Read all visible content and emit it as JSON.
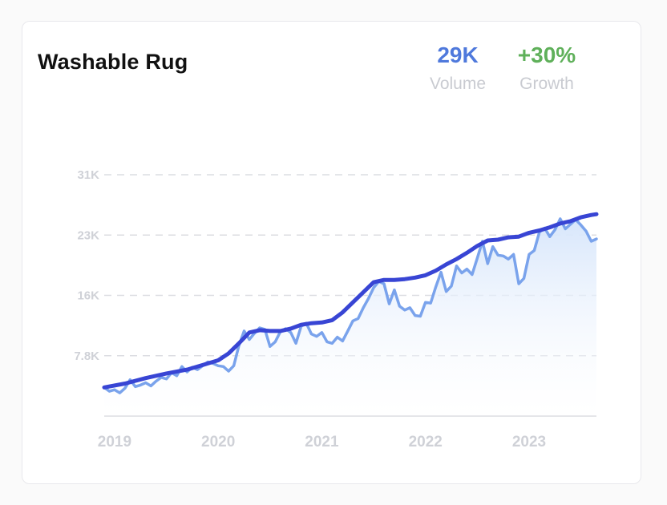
{
  "card": {
    "title": "Washable Rug",
    "stats": [
      {
        "value": "29K",
        "label": "Volume",
        "color": "#4f79dc"
      },
      {
        "value": "+30%",
        "label": "Growth",
        "color": "#5fb05a"
      }
    ]
  },
  "colors": {
    "volume_line": "#7aa3ec",
    "trend_line": "#3845d4",
    "area_fill": "#d7e6fb",
    "grid": "#dcdde2",
    "tick_text": "#cfd1d7"
  },
  "chart_data": {
    "type": "line",
    "title": "Washable Rug",
    "xlabel": "",
    "ylabel": "",
    "x_tick_labels": [
      "2019",
      "2020",
      "2021",
      "2022",
      "2023"
    ],
    "y_tick_labels": [
      "7.8K",
      "16K",
      "23K",
      "31K"
    ],
    "y_tick_values": [
      7800,
      15600,
      23400,
      31200
    ],
    "ylim": [
      0,
      31200
    ],
    "xlim": [
      2018.9,
      2023.65
    ],
    "grid": true,
    "legend": "none",
    "series": [
      {
        "kind": "volume",
        "x": [
          2018.9,
          2018.95,
          2019.0,
          2019.05,
          2019.1,
          2019.15,
          2019.2,
          2019.25,
          2019.3,
          2019.35,
          2019.4,
          2019.45,
          2019.5,
          2019.55,
          2019.6,
          2019.65,
          2019.7,
          2019.75,
          2019.8,
          2019.85,
          2019.9,
          2019.95,
          2020.0,
          2020.05,
          2020.1,
          2020.15,
          2020.2,
          2020.25,
          2020.3,
          2020.35,
          2020.4,
          2020.45,
          2020.5,
          2020.55,
          2020.6,
          2020.65,
          2020.7,
          2020.75,
          2020.8,
          2020.85,
          2020.9,
          2020.95,
          2021.0,
          2021.05,
          2021.1,
          2021.15,
          2021.2,
          2021.25,
          2021.3,
          2021.35,
          2021.4,
          2021.45,
          2021.5,
          2021.55,
          2021.6,
          2021.65,
          2021.7,
          2021.75,
          2021.8,
          2021.85,
          2021.9,
          2021.95,
          2022.0,
          2022.05,
          2022.1,
          2022.15,
          2022.2,
          2022.25,
          2022.3,
          2022.35,
          2022.4,
          2022.45,
          2022.5,
          2022.55,
          2022.6,
          2022.65,
          2022.7,
          2022.75,
          2022.8,
          2022.85,
          2022.9,
          2022.95,
          2023.0,
          2023.05,
          2023.1,
          2023.15,
          2023.2,
          2023.25,
          2023.3,
          2023.35,
          2023.4,
          2023.45,
          2023.5,
          2023.55,
          2023.6,
          2023.65
        ],
        "y": [
          3700,
          3200,
          3400,
          3000,
          3600,
          4700,
          3800,
          4000,
          4300,
          3900,
          4500,
          5000,
          4800,
          5600,
          5200,
          6400,
          5700,
          6300,
          6000,
          6500,
          7000,
          6800,
          6500,
          6400,
          5800,
          6500,
          9100,
          11000,
          9900,
          10700,
          11400,
          11200,
          9000,
          9600,
          10900,
          11300,
          10800,
          9400,
          11600,
          12000,
          10600,
          10300,
          10800,
          9600,
          9400,
          10200,
          9700,
          11000,
          12300,
          12600,
          14000,
          15200,
          16600,
          17400,
          17100,
          14500,
          16300,
          14200,
          13700,
          14000,
          13000,
          12900,
          14700,
          14600,
          16700,
          18600,
          16100,
          16800,
          19400,
          18500,
          19000,
          18300,
          20400,
          22600,
          19700,
          21900,
          20800,
          20700,
          20300,
          20900,
          17100,
          17800,
          20900,
          21400,
          23800,
          24300,
          23200,
          24100,
          25500,
          24200,
          24800,
          25400,
          24700,
          23900,
          22600,
          22900
        ]
      },
      {
        "kind": "trend",
        "x": [
          2018.9,
          2019.1,
          2019.3,
          2019.5,
          2019.7,
          2019.9,
          2020.0,
          2020.1,
          2020.2,
          2020.3,
          2020.4,
          2020.5,
          2020.6,
          2020.7,
          2020.8,
          2020.9,
          2021.0,
          2021.1,
          2021.2,
          2021.3,
          2021.4,
          2021.5,
          2021.6,
          2021.7,
          2021.8,
          2021.9,
          2022.0,
          2022.1,
          2022.2,
          2022.3,
          2022.4,
          2022.5,
          2022.6,
          2022.7,
          2022.8,
          2022.9,
          2023.0,
          2023.1,
          2023.2,
          2023.3,
          2023.4,
          2023.5,
          2023.6,
          2023.65
        ],
        "y": [
          3700,
          4200,
          4900,
          5500,
          6000,
          6800,
          7200,
          8100,
          9400,
          10800,
          11100,
          11000,
          11000,
          11300,
          11800,
          12000,
          12100,
          12400,
          13400,
          14700,
          16000,
          17300,
          17600,
          17600,
          17700,
          17900,
          18200,
          18800,
          19600,
          20300,
          21100,
          22000,
          22700,
          22800,
          23100,
          23200,
          23700,
          24000,
          24400,
          24900,
          25200,
          25700,
          26000,
          26100
        ]
      }
    ]
  }
}
